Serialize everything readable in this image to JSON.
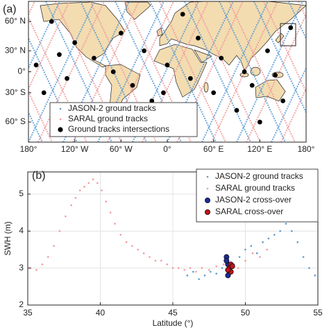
{
  "chart_data": [
    {
      "type": "map",
      "panel_label": "(a)",
      "projection": "mercator",
      "xlim": [
        -180,
        180
      ],
      "ylim": [
        -72,
        72
      ],
      "xticks": [
        {
          "value": -180,
          "label": "180°"
        },
        {
          "value": -120,
          "label": "120° W"
        },
        {
          "value": -60,
          "label": "60° W"
        },
        {
          "value": 0,
          "label": "0°"
        },
        {
          "value": 60,
          "label": "60° E"
        },
        {
          "value": 120,
          "label": "120° E"
        },
        {
          "value": 180,
          "label": "180°"
        }
      ],
      "yticks": [
        {
          "value": -60,
          "label": "60° S"
        },
        {
          "value": -30,
          "label": "30° S"
        },
        {
          "value": 0,
          "label": "0°"
        },
        {
          "value": 30,
          "label": "30° N"
        },
        {
          "value": 60,
          "label": "60° N"
        }
      ],
      "legend": "lower left",
      "series": [
        {
          "name": "JASON-2 ground tracks",
          "color": "#5a9bd4"
        },
        {
          "name": "SARAL ground tracks",
          "color": "#f19a9a"
        },
        {
          "name": "Ground tracks intersections",
          "color": "#000000",
          "x": [
            -150,
            -120,
            -95,
            -70,
            -45,
            -20,
            10,
            -160,
            -130,
            -100,
            -60,
            -30,
            0,
            30,
            60,
            90,
            120,
            150,
            -170,
            40,
            70,
            100,
            130,
            160,
            -80,
            20,
            110,
            140,
            -5,
            -140
          ],
          "values": [
            60,
            40,
            20,
            0,
            -20,
            -40,
            -60,
            -30,
            -10,
            -50,
            50,
            30,
            10,
            -10,
            -30,
            -50,
            -60,
            -40,
            10,
            45,
            20,
            0,
            30,
            55,
            -65,
            65,
            -20,
            -5,
            -30,
            25
          ]
        }
      ]
    },
    {
      "type": "scatter",
      "panel_label": "(b)",
      "xlabel": "Latitude (°)",
      "ylabel": "SWH (m)",
      "xlim": [
        35,
        55
      ],
      "ylim": [
        2,
        5.6
      ],
      "xticks": [
        35,
        40,
        45,
        50,
        55
      ],
      "yticks": [
        2,
        3,
        4,
        5
      ],
      "grid": true,
      "legend": "upper right",
      "series": [
        {
          "name": "JASON-2 ground tracks",
          "color": "#5a9bd4",
          "marker": "dot",
          "x": [
            46.0,
            46.4,
            46.8,
            47.2,
            47.6,
            48.0,
            48.4,
            49.2,
            49.6,
            50.0,
            50.4,
            50.8,
            51.2,
            51.6,
            52.0,
            52.4,
            52.8,
            53.2,
            53.6,
            54.0,
            54.4,
            54.8
          ],
          "values": [
            2.8,
            2.9,
            2.7,
            2.8,
            2.9,
            2.85,
            3.0,
            3.1,
            3.3,
            3.5,
            3.6,
            3.4,
            3.7,
            3.8,
            3.9,
            4.0,
            4.2,
            4.0,
            3.7,
            3.3,
            3.0,
            2.8
          ]
        },
        {
          "name": "SARAL ground tracks",
          "color": "#f19a9a",
          "marker": "dot",
          "x": [
            35.2,
            35.6,
            36.0,
            36.4,
            36.8,
            37.2,
            37.6,
            38.0,
            38.3,
            38.6,
            38.9,
            39.2,
            39.5,
            39.8,
            40.1,
            40.4,
            40.7,
            41.0,
            41.4,
            41.8,
            42.2,
            42.6,
            43.0,
            43.4,
            43.8,
            44.2,
            44.6,
            45.0,
            45.4,
            45.8,
            46.2,
            46.6,
            47.0,
            47.5,
            48.0,
            48.5,
            49.5,
            50.0,
            50.5,
            51.0,
            51.5
          ],
          "values": [
            3.0,
            2.95,
            3.1,
            3.3,
            3.6,
            4.0,
            4.4,
            4.7,
            4.9,
            5.1,
            5.2,
            5.3,
            5.4,
            5.3,
            5.1,
            4.8,
            4.5,
            4.2,
            3.9,
            3.7,
            3.6,
            3.5,
            3.4,
            3.3,
            3.2,
            3.2,
            3.1,
            3.0,
            3.0,
            2.95,
            3.0,
            2.9,
            3.0,
            2.95,
            3.05,
            3.1,
            3.0,
            3.2,
            3.4,
            3.3,
            3.5
          ]
        },
        {
          "name": "JASON-2 cross-over",
          "color": "#1c2a9c",
          "marker": "circle",
          "x": [
            48.7,
            48.8,
            48.9,
            48.8,
            48.7
          ],
          "values": [
            3.3,
            3.1,
            2.9,
            2.8,
            3.2
          ]
        },
        {
          "name": "SARAL cross-over",
          "color": "#c4111b",
          "marker": "circle",
          "x": [
            48.9,
            49.0,
            49.0,
            48.8,
            49.1
          ],
          "values": [
            3.0,
            3.1,
            2.9,
            2.95,
            3.05
          ]
        }
      ]
    }
  ]
}
